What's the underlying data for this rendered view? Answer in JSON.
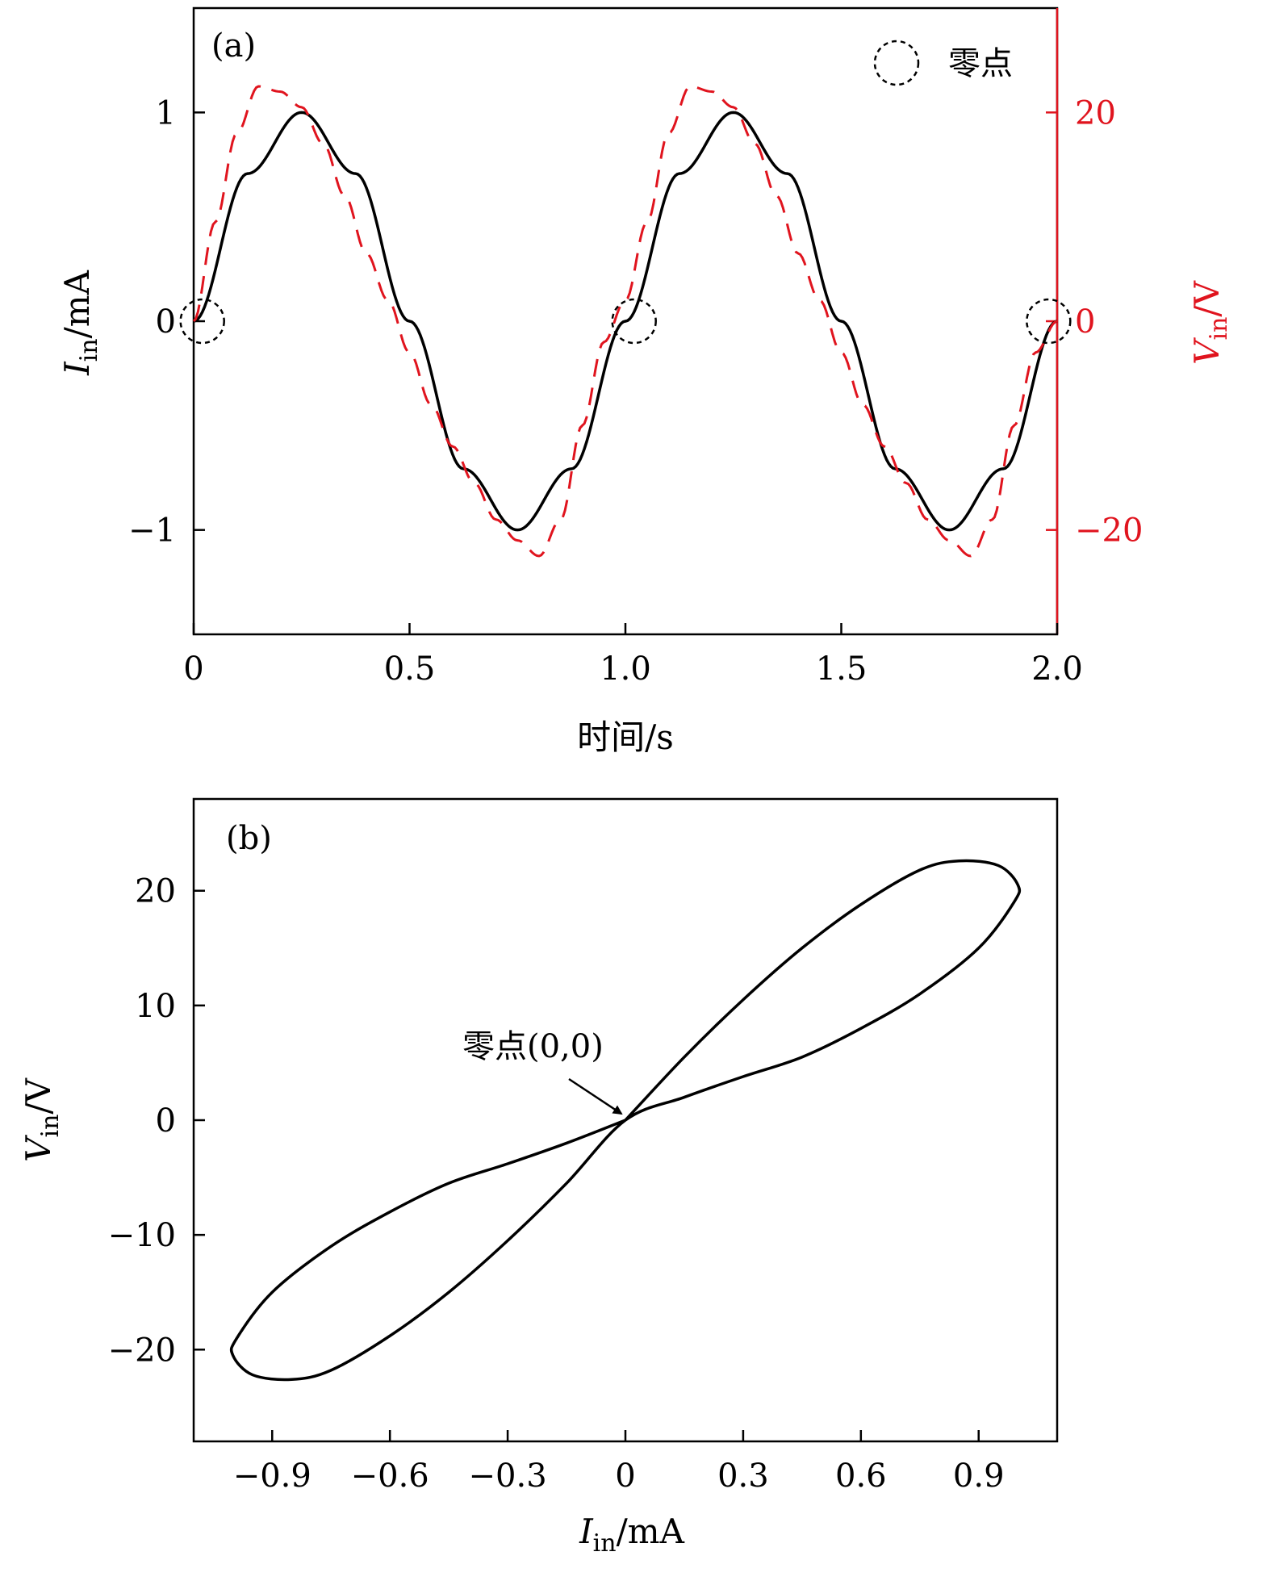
{
  "chart_data": [
    {
      "panel": "(a)",
      "type": "line",
      "xlabel": "时间/s",
      "ylabel_left": "I_in/mA",
      "ylabel_right": "V_in/V",
      "xlim": [
        0,
        2.0
      ],
      "ylim_left": [
        -1.5,
        1.5
      ],
      "ylim_right": [
        -30,
        30
      ],
      "x_ticks": [
        "0",
        "0.5",
        "1.0",
        "1.5",
        "2.0"
      ],
      "y_ticks_left": [
        "1",
        "0",
        "−1"
      ],
      "y_ticks_right": [
        "20",
        "0",
        "−20"
      ],
      "legend": {
        "label": "零点",
        "position": "top-right"
      },
      "series": [
        {
          "axis": "left",
          "style": "solid",
          "color": "#000000",
          "x": [
            0,
            0.125,
            0.25,
            0.375,
            0.5,
            0.625,
            0.75,
            0.875,
            1.0,
            1.125,
            1.25,
            1.375,
            1.5,
            1.625,
            1.75,
            1.875,
            2.0
          ],
          "y": [
            0,
            0.707,
            1,
            0.707,
            0,
            -0.707,
            -1,
            -0.707,
            0,
            0.707,
            1,
            0.707,
            0,
            -0.707,
            -1,
            -0.707,
            0
          ]
        },
        {
          "axis": "right",
          "style": "dashed",
          "color": "#e0141e",
          "x": [
            0,
            0.05,
            0.1,
            0.15,
            0.2,
            0.25,
            0.3,
            0.35,
            0.4,
            0.45,
            0.5,
            0.55,
            0.6,
            0.65,
            0.7,
            0.75,
            0.8,
            0.85,
            0.9,
            0.95,
            1.0,
            1.05,
            1.1,
            1.15,
            1.2,
            1.25,
            1.3,
            1.35,
            1.4,
            1.45,
            1.5,
            1.55,
            1.6,
            1.65,
            1.7,
            1.75,
            1.8,
            1.85,
            1.9,
            1.95,
            2.0
          ],
          "y": [
            0,
            9.5,
            18,
            22.5,
            22,
            20.5,
            17,
            12,
            6.5,
            2,
            -3,
            -8,
            -12,
            -15.5,
            -19,
            -21,
            -22.5,
            -19,
            -10,
            -2,
            2,
            9.5,
            18,
            22.5,
            22,
            20.5,
            17,
            12,
            6.5,
            2,
            -3,
            -8,
            -12,
            -15.5,
            -19,
            -21,
            -22.5,
            -19,
            -10,
            -3,
            0
          ]
        }
      ],
      "zero_points": [
        {
          "x": 0.02,
          "y": 0
        },
        {
          "x": 1.02,
          "y": 0
        },
        {
          "x": 1.98,
          "y": 0
        }
      ]
    },
    {
      "panel": "(b)",
      "type": "line",
      "xlabel": "I_in/mA",
      "ylabel": "V_in/V",
      "xlim": [
        -1.1,
        1.1
      ],
      "ylim": [
        -28,
        28
      ],
      "x_ticks": [
        "−0.9",
        "−0.6",
        "−0.3",
        "0",
        "0.3",
        "0.6",
        "0.9"
      ],
      "y_ticks": [
        "20",
        "10",
        "0",
        "−10",
        "−20"
      ],
      "annotation": {
        "text": "零点(0,0)",
        "x": 0,
        "y": 0
      },
      "series": [
        {
          "style": "solid",
          "color": "#000000",
          "x": [
            0,
            0.15,
            0.3,
            0.45,
            0.6,
            0.75,
            0.85,
            0.95,
            1.0,
            0.99,
            0.9,
            0.75,
            0.6,
            0.45,
            0.3,
            0.15,
            0,
            -0.15,
            -0.3,
            -0.45,
            -0.6,
            -0.75,
            -0.85,
            -0.95,
            -1.0,
            -0.99,
            -0.9,
            -0.75,
            -0.6,
            -0.45,
            -0.3,
            -0.15,
            0
          ],
          "y": [
            0,
            5.5,
            10.5,
            15,
            18.8,
            21.8,
            22.6,
            22.2,
            20.5,
            19,
            15,
            11,
            8,
            5.5,
            3.8,
            2,
            0,
            -5.5,
            -10.5,
            -15,
            -18.8,
            -21.8,
            -22.6,
            -22.2,
            -20.5,
            -19,
            -15,
            -11,
            -8,
            -5.5,
            -3.8,
            -2,
            0
          ]
        }
      ]
    }
  ]
}
